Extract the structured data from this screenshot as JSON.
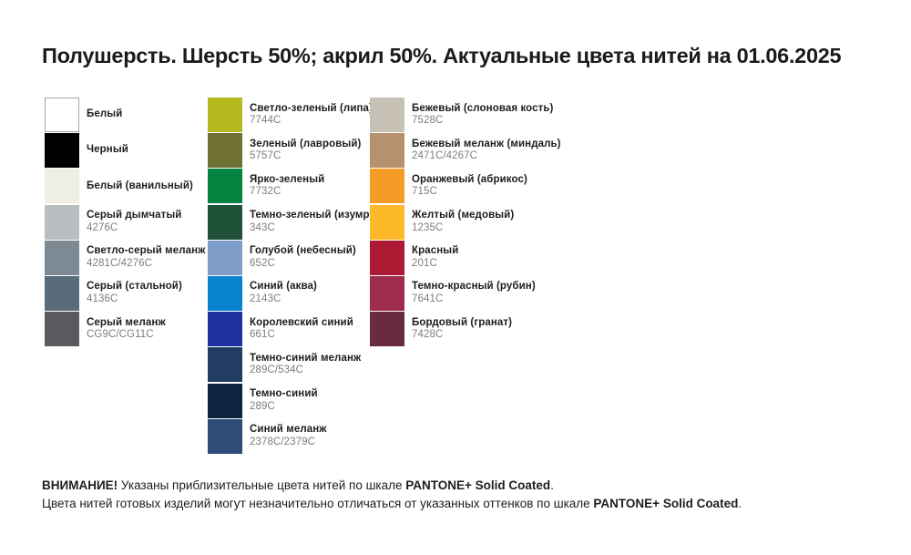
{
  "title": "Полушерсть. Шерсть 50%; акрил 50%. Актуальные цвета нитей на 01.06.2025",
  "columns": [
    {
      "items": [
        {
          "name": "Белый",
          "code": "",
          "color": "#ffffff",
          "bordered": true
        },
        {
          "name": "Черный",
          "code": "",
          "color": "#000000"
        },
        {
          "name": "Белый (ванильный)",
          "code": "",
          "color": "#eeeee3"
        },
        {
          "name": "Серый дымчатый",
          "code": "4276C",
          "color": "#b9bec1"
        },
        {
          "name": "Светло-серый меланж",
          "code": "4281C/4276C",
          "color": "#7e8a93"
        },
        {
          "name": "Серый (стальной)",
          "code": "4136C",
          "color": "#5a6c7a"
        },
        {
          "name": "Серый меланж",
          "code": "CG9C/CG11C",
          "color": "#595b5f"
        }
      ]
    },
    {
      "items": [
        {
          "name": "Светло-зеленый (липа)",
          "code": "7744C",
          "color": "#b4ba1d"
        },
        {
          "name": "Зеленый (лавровый)",
          "code": "5757C",
          "color": "#6f7233"
        },
        {
          "name": "Ярко-зеленый",
          "code": "7732C",
          "color": "#028440"
        },
        {
          "name": "Темно-зеленый (изумруд)",
          "code": "343C",
          "color": "#1f5238"
        },
        {
          "name": "Голубой (небесный)",
          "code": "652C",
          "color": "#7f9dc9"
        },
        {
          "name": "Синий (аква)",
          "code": "2143C",
          "color": "#0983cf"
        },
        {
          "name": "Королевский синий",
          "code": "661C",
          "color": "#1d31a1"
        },
        {
          "name": "Темно-синий меланж",
          "code": "289C/534C",
          "color": "#233c62"
        },
        {
          "name": "Темно-синий",
          "code": "289C",
          "color": "#0e2341"
        },
        {
          "name": "Синий меланж",
          "code": "2378C/2379C",
          "color": "#2e4d78"
        }
      ]
    },
    {
      "items": [
        {
          "name": "Бежевый (слоновая кость)",
          "code": "7528C",
          "color": "#c7c0b4"
        },
        {
          "name": "Бежевый меланж (миндаль)",
          "code": "2471C/4267C",
          "color": "#b7906d"
        },
        {
          "name": "Оранжевый (абрикос)",
          "code": "715C",
          "color": "#f59b27"
        },
        {
          "name": "Желтый (медовый)",
          "code": "1235C",
          "color": "#fcb929"
        },
        {
          "name": "Красный",
          "code": "201C",
          "color": "#ad1a33"
        },
        {
          "name": "Темно-красный (рубин)",
          "code": "7641C",
          "color": "#9f2b4f"
        },
        {
          "name": "Бордовый (гранат)",
          "code": "7428C",
          "color": "#692b40"
        }
      ]
    }
  ],
  "footer": {
    "line1": {
      "attention": "ВНИМАНИЕ!",
      "text": " Указаны приблизительные цвета нитей по шкале ",
      "brand": "PANTONE+ Solid Coated",
      "period": "."
    },
    "line2": {
      "text": "Цвета нитей готовых изделий могут незначительно отличаться от указанных оттенков по шкале ",
      "brand": "PANTONE+ Solid Coated",
      "period": "."
    }
  }
}
